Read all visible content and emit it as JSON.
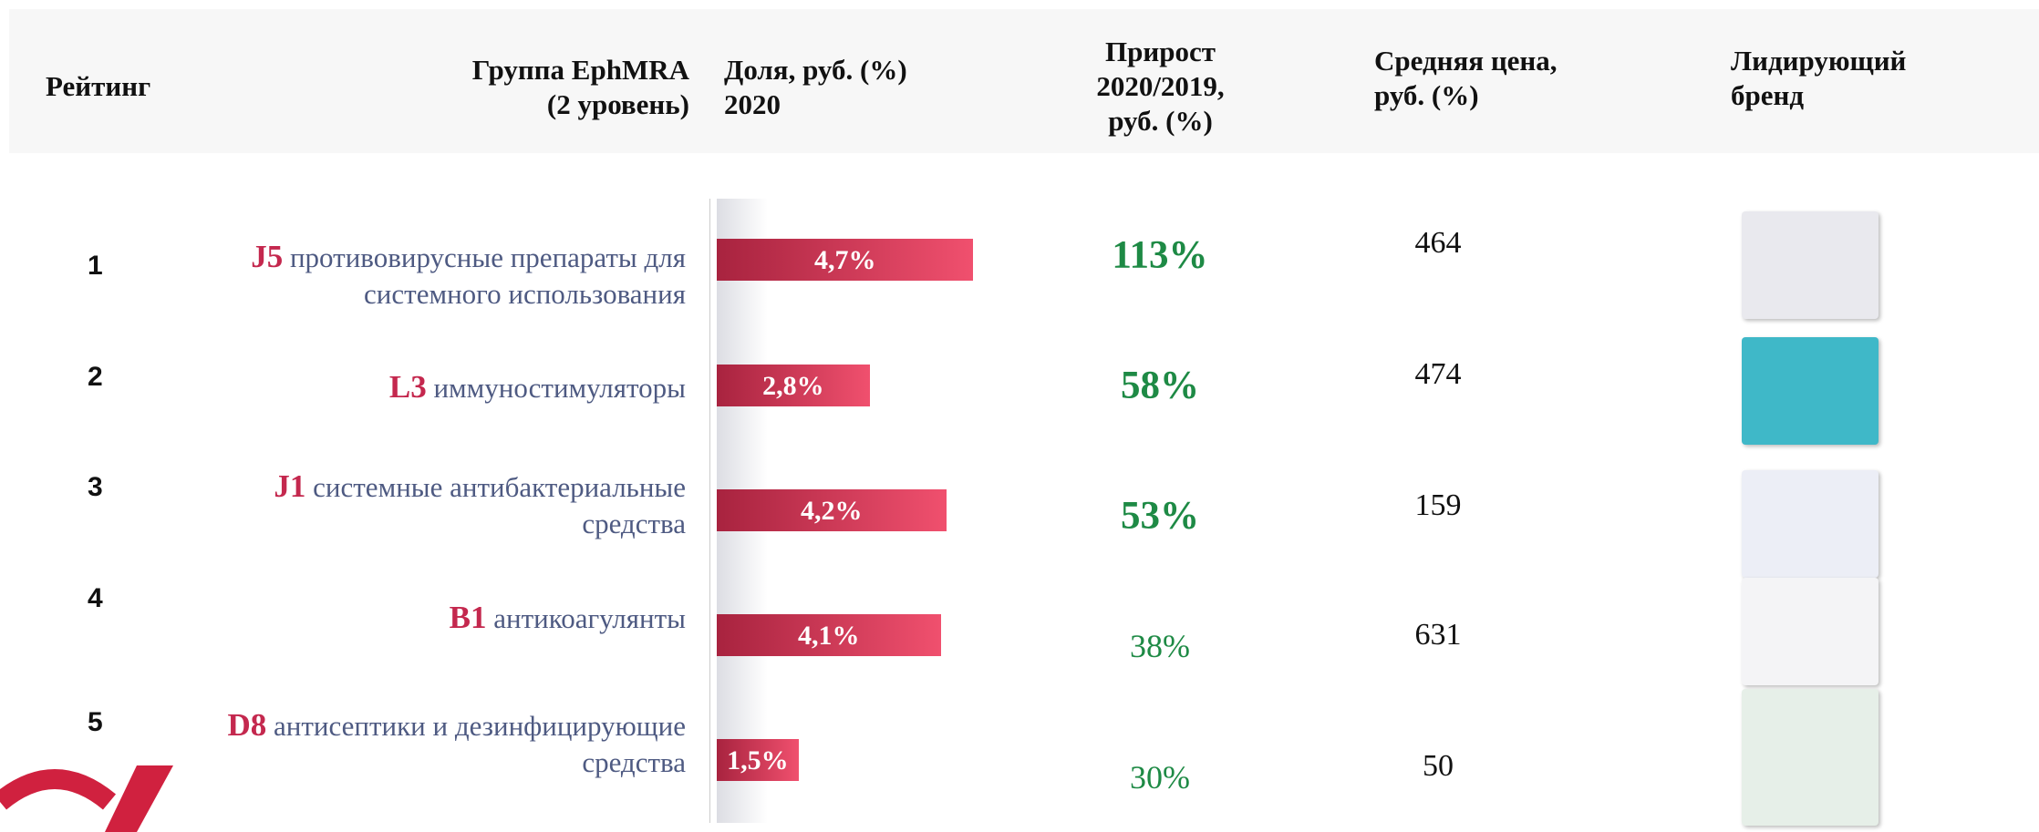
{
  "header": {
    "rating": "Рейтинг",
    "group": [
      "Группа EphMRA",
      "(2 уровень)"
    ],
    "share": [
      "Доля, руб. (%)",
      "2020"
    ],
    "growth": [
      "Прирост",
      "2020/2019,",
      "руб. (%)"
    ],
    "price": [
      "Средняя цена,",
      "руб. (%)"
    ],
    "brand": [
      "Лидирующий",
      "бренд"
    ]
  },
  "rows": [
    {
      "rank": "1",
      "code": "J5",
      "group": [
        "противовирусные препараты для",
        "системного использования"
      ],
      "share": 4.7,
      "share_label": "4,7%",
      "growth": "113%",
      "price": 464
    },
    {
      "rank": "2",
      "code": "L3",
      "group": [
        "иммуностимуляторы"
      ],
      "share": 2.8,
      "share_label": "2,8%",
      "growth": "58%",
      "price": 474
    },
    {
      "rank": "3",
      "code": "J1",
      "group": [
        "системные антибактериальные",
        "средства"
      ],
      "share": 4.2,
      "share_label": "4,2%",
      "growth": "53%",
      "price": 159
    },
    {
      "rank": "4",
      "code": "B1",
      "group": [
        "антикоагулянты"
      ],
      "share": 4.1,
      "share_label": "4,1%",
      "growth": "38%",
      "price": 631
    },
    {
      "rank": "5",
      "code": "D8",
      "group": [
        "антисептики и дезинфицирующие",
        "средства"
      ],
      "share": 1.5,
      "share_label": "1,5%",
      "growth": "30%",
      "price": 50
    }
  ]
}
